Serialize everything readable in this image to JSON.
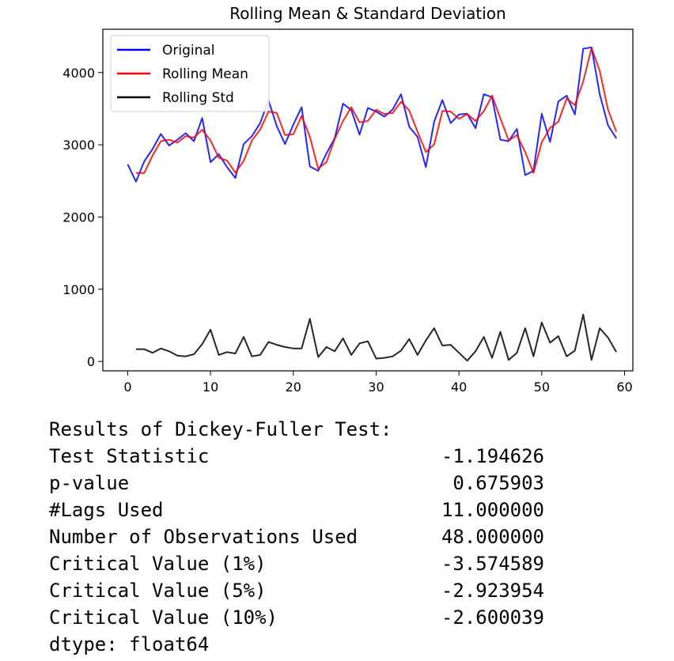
{
  "chart_data": {
    "type": "line",
    "title": "Rolling Mean & Standard Deviation",
    "xlabel": "",
    "ylabel": "",
    "xlim": [
      -3,
      61
    ],
    "ylim": [
      -130,
      4600
    ],
    "xticks": [
      0,
      10,
      20,
      30,
      40,
      50,
      60
    ],
    "yticks": [
      0,
      1000,
      2000,
      3000,
      4000
    ],
    "legend_position": "top-left",
    "grid": false,
    "series": [
      {
        "name": "Original",
        "color": "#0000ff",
        "x": [
          0,
          1,
          2,
          3,
          4,
          5,
          6,
          7,
          8,
          9,
          10,
          11,
          12,
          13,
          14,
          15,
          16,
          17,
          18,
          19,
          20,
          21,
          22,
          23,
          24,
          25,
          26,
          27,
          28,
          29,
          30,
          31,
          32,
          33,
          34,
          35,
          36,
          37,
          38,
          39,
          40,
          41,
          42,
          43,
          44,
          45,
          46,
          47,
          48,
          49,
          50,
          51,
          52,
          53,
          54,
          55,
          56,
          57,
          58,
          59
        ],
        "values": [
          2730,
          2490,
          2770,
          2940,
          3150,
          2990,
          3070,
          3160,
          3050,
          3370,
          2760,
          2870,
          2690,
          2540,
          3010,
          3120,
          3300,
          3620,
          3260,
          3010,
          3280,
          3520,
          2700,
          2640,
          2880,
          3090,
          3570,
          3480,
          3140,
          3510,
          3460,
          3390,
          3490,
          3700,
          3250,
          3110,
          2690,
          3320,
          3620,
          3300,
          3420,
          3430,
          3230,
          3700,
          3660,
          3070,
          3050,
          3220,
          2580,
          2640,
          3430,
          3040,
          3600,
          3680,
          3420,
          4330,
          4350,
          3700,
          3270,
          3090
        ]
      },
      {
        "name": "Rolling Mean",
        "color": "#ff0000",
        "x": [
          1,
          2,
          3,
          4,
          5,
          6,
          7,
          8,
          9,
          10,
          11,
          12,
          13,
          14,
          15,
          16,
          17,
          18,
          19,
          20,
          21,
          22,
          23,
          24,
          25,
          26,
          27,
          28,
          29,
          30,
          31,
          32,
          33,
          34,
          35,
          36,
          37,
          38,
          39,
          40,
          41,
          42,
          43,
          44,
          45,
          46,
          47,
          48,
          49,
          50,
          51,
          52,
          53,
          54,
          55,
          56,
          57,
          58,
          59
        ],
        "values": [
          2610,
          2610,
          2850,
          3050,
          3070,
          3030,
          3120,
          3100,
          3210,
          3060,
          2820,
          2780,
          2615,
          2775,
          3060,
          3210,
          3460,
          3440,
          3135,
          3145,
          3400,
          3110,
          2670,
          2760,
          3080,
          3330,
          3520,
          3310,
          3330,
          3485,
          3425,
          3440,
          3595,
          3475,
          3180,
          2900,
          3005,
          3470,
          3460,
          3360,
          3425,
          3330,
          3465,
          3680,
          3365,
          3060,
          3135,
          2900,
          2610,
          3035,
          3235,
          3320,
          3640,
          3550,
          3875,
          4340,
          4025,
          3485,
          3180
        ]
      },
      {
        "name": "Rolling Std",
        "color": "#000000",
        "x": [
          1,
          2,
          3,
          4,
          5,
          6,
          7,
          8,
          9,
          10,
          11,
          12,
          13,
          14,
          15,
          16,
          17,
          18,
          19,
          20,
          21,
          22,
          23,
          24,
          25,
          26,
          27,
          28,
          29,
          30,
          31,
          32,
          33,
          34,
          35,
          36,
          37,
          38,
          39,
          40,
          41,
          42,
          43,
          44,
          45,
          46,
          47,
          48,
          49,
          50,
          51,
          52,
          53,
          54,
          55,
          56,
          57,
          58,
          59
        ],
        "values": [
          170,
          170,
          120,
          180,
          140,
          80,
          70,
          100,
          240,
          440,
          90,
          130,
          110,
          340,
          70,
          90,
          270,
          230,
          200,
          180,
          180,
          590,
          60,
          200,
          140,
          320,
          90,
          250,
          280,
          40,
          50,
          70,
          150,
          310,
          90,
          290,
          460,
          220,
          230,
          120,
          10,
          140,
          340,
          50,
          410,
          20,
          120,
          460,
          70,
          540,
          260,
          350,
          70,
          150,
          650,
          20,
          460,
          330,
          130
        ]
      }
    ]
  },
  "output": {
    "header": "Results of Dickey-Fuller Test:",
    "rows": [
      {
        "label": "Test Statistic",
        "value": "-1.194626"
      },
      {
        "label": "p-value",
        "value": "0.675903"
      },
      {
        "label": "#Lags Used",
        "value": "11.000000"
      },
      {
        "label": "Number of Observations Used",
        "value": "48.000000"
      },
      {
        "label": "Critical Value (1%)",
        "value": "-3.574589"
      },
      {
        "label": "Critical Value (5%)",
        "value": "-2.923954"
      },
      {
        "label": "Critical Value (10%)",
        "value": "-2.600039"
      }
    ],
    "dtype": "dtype: float64"
  }
}
